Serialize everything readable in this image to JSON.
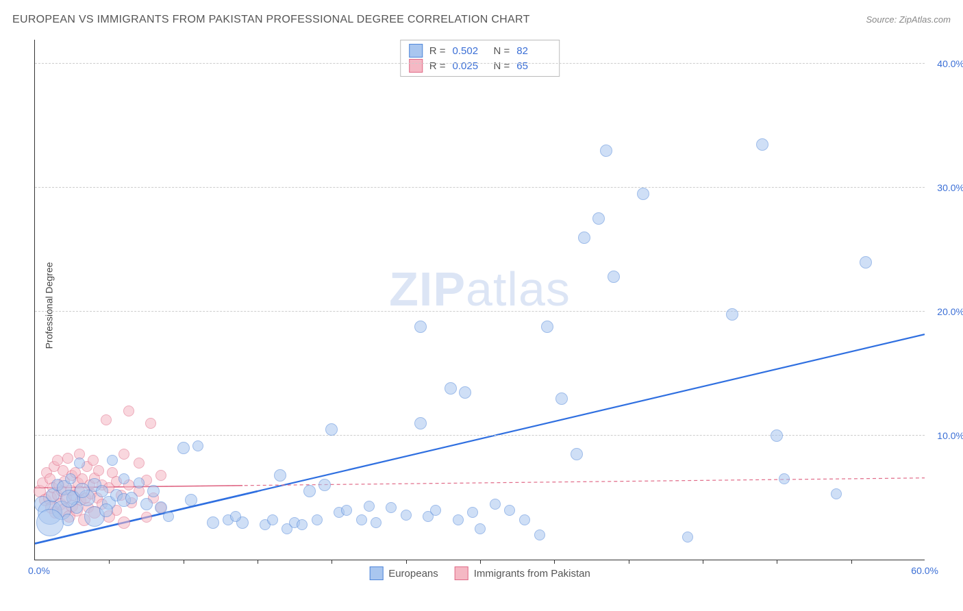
{
  "header": {
    "title": "EUROPEAN VS IMMIGRANTS FROM PAKISTAN PROFESSIONAL DEGREE CORRELATION CHART",
    "source_prefix": "Source: ",
    "source_name": "ZipAtlas.com"
  },
  "chart": {
    "type": "scatter",
    "ylabel": "Professional Degree",
    "xlim": [
      0,
      60
    ],
    "ylim": [
      0,
      42
    ],
    "x_origin_label": "0.0%",
    "x_max_label": "60.0%",
    "x_tick_step": 5,
    "y_ticks": [
      10,
      20,
      30,
      40
    ],
    "y_tick_labels": [
      "10.0%",
      "20.0%",
      "30.0%",
      "40.0%"
    ],
    "grid_color": "#cccccc",
    "axis_color": "#333333",
    "background_color": "#ffffff",
    "watermark": {
      "text_bold": "ZIP",
      "text_light": "atlas",
      "color": "#dce5f5",
      "fontsize": 70
    },
    "series": [
      {
        "name": "Europeans",
        "fill": "#a9c6ef",
        "stroke": "#4f86d9",
        "fill_opacity": 0.55,
        "stroke_width": 1,
        "trend": {
          "x1": 0,
          "y1": 1.3,
          "x2": 60,
          "y2": 18.2,
          "color": "#2f6fe0",
          "width": 2.2,
          "dash": "none"
        },
        "trend_extra_solid_to_x": 15,
        "R": "0.502",
        "N": "82",
        "points": [
          {
            "x": 0.5,
            "y": 4.5,
            "r": 12
          },
          {
            "x": 1.0,
            "y": 3.8,
            "r": 18
          },
          {
            "x": 1.2,
            "y": 5.2,
            "r": 10
          },
          {
            "x": 1.5,
            "y": 6.0,
            "r": 9
          },
          {
            "x": 1.8,
            "y": 4.0,
            "r": 14
          },
          {
            "x": 2.0,
            "y": 5.8,
            "r": 11
          },
          {
            "x": 2.2,
            "y": 3.2,
            "r": 9
          },
          {
            "x": 2.4,
            "y": 6.5,
            "r": 8
          },
          {
            "x": 2.6,
            "y": 5.0,
            "r": 10
          },
          {
            "x": 2.8,
            "y": 4.2,
            "r": 9
          },
          {
            "x": 3.0,
            "y": 7.8,
            "r": 8
          },
          {
            "x": 3.5,
            "y": 5.0,
            "r": 12
          },
          {
            "x": 4.0,
            "y": 6.0,
            "r": 10
          },
          {
            "x": 4.0,
            "y": 3.5,
            "r": 15
          },
          {
            "x": 4.5,
            "y": 5.5,
            "r": 9
          },
          {
            "x": 5.0,
            "y": 4.6,
            "r": 10
          },
          {
            "x": 5.2,
            "y": 8.0,
            "r": 8
          },
          {
            "x": 5.5,
            "y": 5.2,
            "r": 9
          },
          {
            "x": 6.0,
            "y": 4.8,
            "r": 10
          },
          {
            "x": 6.0,
            "y": 6.5,
            "r": 8
          },
          {
            "x": 7.5,
            "y": 4.5,
            "r": 9
          },
          {
            "x": 8.0,
            "y": 5.5,
            "r": 9
          },
          {
            "x": 9.0,
            "y": 3.5,
            "r": 8
          },
          {
            "x": 10.0,
            "y": 9.0,
            "r": 9
          },
          {
            "x": 10.5,
            "y": 4.8,
            "r": 9
          },
          {
            "x": 11.0,
            "y": 9.2,
            "r": 8
          },
          {
            "x": 12.0,
            "y": 3.0,
            "r": 9
          },
          {
            "x": 13.0,
            "y": 3.2,
            "r": 8
          },
          {
            "x": 14.0,
            "y": 3.0,
            "r": 9
          },
          {
            "x": 15.5,
            "y": 2.8,
            "r": 8
          },
          {
            "x": 16.0,
            "y": 3.2,
            "r": 8
          },
          {
            "x": 16.5,
            "y": 6.8,
            "r": 9
          },
          {
            "x": 17.0,
            "y": 2.5,
            "r": 8
          },
          {
            "x": 17.5,
            "y": 3.0,
            "r": 8
          },
          {
            "x": 18.0,
            "y": 2.8,
            "r": 8
          },
          {
            "x": 18.5,
            "y": 5.5,
            "r": 9
          },
          {
            "x": 19.0,
            "y": 3.2,
            "r": 8
          },
          {
            "x": 19.5,
            "y": 6.0,
            "r": 9
          },
          {
            "x": 20.0,
            "y": 10.5,
            "r": 9
          },
          {
            "x": 20.5,
            "y": 3.8,
            "r": 8
          },
          {
            "x": 21.0,
            "y": 4.0,
            "r": 8
          },
          {
            "x": 22.0,
            "y": 3.2,
            "r": 8
          },
          {
            "x": 22.5,
            "y": 4.3,
            "r": 8
          },
          {
            "x": 23.0,
            "y": 3.0,
            "r": 8
          },
          {
            "x": 24.0,
            "y": 4.2,
            "r": 8
          },
          {
            "x": 25.0,
            "y": 3.6,
            "r": 8
          },
          {
            "x": 26.0,
            "y": 11.0,
            "r": 9
          },
          {
            "x": 26.0,
            "y": 18.8,
            "r": 9
          },
          {
            "x": 26.5,
            "y": 3.5,
            "r": 8
          },
          {
            "x": 27.0,
            "y": 4.0,
            "r": 8
          },
          {
            "x": 28.0,
            "y": 13.8,
            "r": 9
          },
          {
            "x": 28.5,
            "y": 3.2,
            "r": 8
          },
          {
            "x": 29.0,
            "y": 13.5,
            "r": 9
          },
          {
            "x": 29.5,
            "y": 3.8,
            "r": 8
          },
          {
            "x": 30.0,
            "y": 2.5,
            "r": 8
          },
          {
            "x": 31.0,
            "y": 4.5,
            "r": 8
          },
          {
            "x": 32.0,
            "y": 4.0,
            "r": 8
          },
          {
            "x": 33.0,
            "y": 3.2,
            "r": 8
          },
          {
            "x": 34.0,
            "y": 2.0,
            "r": 8
          },
          {
            "x": 34.5,
            "y": 18.8,
            "r": 9
          },
          {
            "x": 35.5,
            "y": 13.0,
            "r": 9
          },
          {
            "x": 36.5,
            "y": 8.5,
            "r": 9
          },
          {
            "x": 37.0,
            "y": 26.0,
            "r": 9
          },
          {
            "x": 38.0,
            "y": 27.5,
            "r": 9
          },
          {
            "x": 38.5,
            "y": 33.0,
            "r": 9
          },
          {
            "x": 39.0,
            "y": 22.8,
            "r": 9
          },
          {
            "x": 41.0,
            "y": 29.5,
            "r": 9
          },
          {
            "x": 44.0,
            "y": 1.8,
            "r": 8
          },
          {
            "x": 47.0,
            "y": 19.8,
            "r": 9
          },
          {
            "x": 49.0,
            "y": 33.5,
            "r": 9
          },
          {
            "x": 50.0,
            "y": 10.0,
            "r": 9
          },
          {
            "x": 50.5,
            "y": 6.5,
            "r": 8
          },
          {
            "x": 54.0,
            "y": 5.3,
            "r": 8
          },
          {
            "x": 56.0,
            "y": 24.0,
            "r": 9
          },
          {
            "x": 1.0,
            "y": 3.0,
            "r": 20
          },
          {
            "x": 2.3,
            "y": 4.9,
            "r": 13
          },
          {
            "x": 3.2,
            "y": 5.6,
            "r": 11
          },
          {
            "x": 4.8,
            "y": 4.0,
            "r": 10
          },
          {
            "x": 6.5,
            "y": 5.0,
            "r": 9
          },
          {
            "x": 7.0,
            "y": 6.2,
            "r": 8
          },
          {
            "x": 8.5,
            "y": 4.2,
            "r": 9
          },
          {
            "x": 13.5,
            "y": 3.5,
            "r": 8
          }
        ]
      },
      {
        "name": "Immigrants from Pakistan",
        "fill": "#f5b8c4",
        "stroke": "#e06a87",
        "fill_opacity": 0.55,
        "stroke_width": 1,
        "trend": {
          "x1": 0,
          "y1": 5.8,
          "x2": 60,
          "y2": 6.6,
          "color": "#e06a87",
          "width": 1.2,
          "dash": "5,4"
        },
        "trend_extra_solid_to_x": 14,
        "R": "0.025",
        "N": "65",
        "points": [
          {
            "x": 0.3,
            "y": 5.5,
            "r": 9
          },
          {
            "x": 0.5,
            "y": 6.2,
            "r": 8
          },
          {
            "x": 0.7,
            "y": 4.8,
            "r": 9
          },
          {
            "x": 0.8,
            "y": 7.0,
            "r": 8
          },
          {
            "x": 1.0,
            "y": 5.0,
            "r": 10
          },
          {
            "x": 1.0,
            "y": 6.5,
            "r": 8
          },
          {
            "x": 1.1,
            "y": 4.2,
            "r": 9
          },
          {
            "x": 1.2,
            "y": 5.8,
            "r": 8
          },
          {
            "x": 1.3,
            "y": 7.5,
            "r": 8
          },
          {
            "x": 1.4,
            "y": 3.8,
            "r": 9
          },
          {
            "x": 1.5,
            "y": 5.2,
            "r": 8
          },
          {
            "x": 1.5,
            "y": 8.0,
            "r": 8
          },
          {
            "x": 1.6,
            "y": 6.0,
            "r": 8
          },
          {
            "x": 1.7,
            "y": 4.5,
            "r": 9
          },
          {
            "x": 1.8,
            "y": 5.5,
            "r": 8
          },
          {
            "x": 1.9,
            "y": 7.2,
            "r": 8
          },
          {
            "x": 2.0,
            "y": 4.0,
            "r": 10
          },
          {
            "x": 2.0,
            "y": 6.3,
            "r": 8
          },
          {
            "x": 2.1,
            "y": 5.0,
            "r": 8
          },
          {
            "x": 2.2,
            "y": 8.2,
            "r": 8
          },
          {
            "x": 2.3,
            "y": 3.5,
            "r": 9
          },
          {
            "x": 2.4,
            "y": 5.6,
            "r": 8
          },
          {
            "x": 2.5,
            "y": 6.8,
            "r": 8
          },
          {
            "x": 2.5,
            "y": 4.3,
            "r": 9
          },
          {
            "x": 2.6,
            "y": 5.2,
            "r": 8
          },
          {
            "x": 2.7,
            "y": 7.0,
            "r": 8
          },
          {
            "x": 2.8,
            "y": 4.0,
            "r": 9
          },
          {
            "x": 2.9,
            "y": 6.2,
            "r": 8
          },
          {
            "x": 3.0,
            "y": 5.5,
            "r": 8
          },
          {
            "x": 3.0,
            "y": 8.5,
            "r": 8
          },
          {
            "x": 3.1,
            "y": 4.8,
            "r": 8
          },
          {
            "x": 3.2,
            "y": 6.5,
            "r": 8
          },
          {
            "x": 3.3,
            "y": 3.2,
            "r": 9
          },
          {
            "x": 3.4,
            "y": 5.0,
            "r": 8
          },
          {
            "x": 3.5,
            "y": 7.5,
            "r": 8
          },
          {
            "x": 3.6,
            "y": 4.2,
            "r": 8
          },
          {
            "x": 3.7,
            "y": 6.0,
            "r": 8
          },
          {
            "x": 3.8,
            "y": 5.3,
            "r": 8
          },
          {
            "x": 3.9,
            "y": 8.0,
            "r": 8
          },
          {
            "x": 4.0,
            "y": 3.8,
            "r": 9
          },
          {
            "x": 4.0,
            "y": 6.6,
            "r": 8
          },
          {
            "x": 4.2,
            "y": 5.0,
            "r": 8
          },
          {
            "x": 4.3,
            "y": 7.2,
            "r": 8
          },
          {
            "x": 4.5,
            "y": 4.5,
            "r": 8
          },
          {
            "x": 4.5,
            "y": 6.0,
            "r": 8
          },
          {
            "x": 4.8,
            "y": 11.3,
            "r": 8
          },
          {
            "x": 5.0,
            "y": 3.5,
            "r": 9
          },
          {
            "x": 5.0,
            "y": 5.8,
            "r": 8
          },
          {
            "x": 5.2,
            "y": 7.0,
            "r": 8
          },
          {
            "x": 5.5,
            "y": 4.0,
            "r": 8
          },
          {
            "x": 5.5,
            "y": 6.3,
            "r": 8
          },
          {
            "x": 5.8,
            "y": 5.2,
            "r": 8
          },
          {
            "x": 6.0,
            "y": 8.5,
            "r": 8
          },
          {
            "x": 6.0,
            "y": 3.0,
            "r": 9
          },
          {
            "x": 6.3,
            "y": 6.0,
            "r": 8
          },
          {
            "x": 6.3,
            "y": 12.0,
            "r": 8
          },
          {
            "x": 6.5,
            "y": 4.6,
            "r": 8
          },
          {
            "x": 7.0,
            "y": 5.5,
            "r": 8
          },
          {
            "x": 7.0,
            "y": 7.8,
            "r": 8
          },
          {
            "x": 7.5,
            "y": 3.4,
            "r": 8
          },
          {
            "x": 7.5,
            "y": 6.4,
            "r": 8
          },
          {
            "x": 8.0,
            "y": 5.0,
            "r": 8
          },
          {
            "x": 7.8,
            "y": 11.0,
            "r": 8
          },
          {
            "x": 8.5,
            "y": 4.2,
            "r": 8
          },
          {
            "x": 8.5,
            "y": 6.8,
            "r": 8
          }
        ]
      }
    ],
    "stats_legend": {
      "R_label": "R =",
      "N_label": "N ="
    },
    "bottom_legend": {
      "items": [
        {
          "label": "Europeans",
          "fill": "#a9c6ef",
          "stroke": "#4f86d9"
        },
        {
          "label": "Immigrants from Pakistan",
          "fill": "#f5b8c4",
          "stroke": "#e06a87"
        }
      ]
    }
  }
}
